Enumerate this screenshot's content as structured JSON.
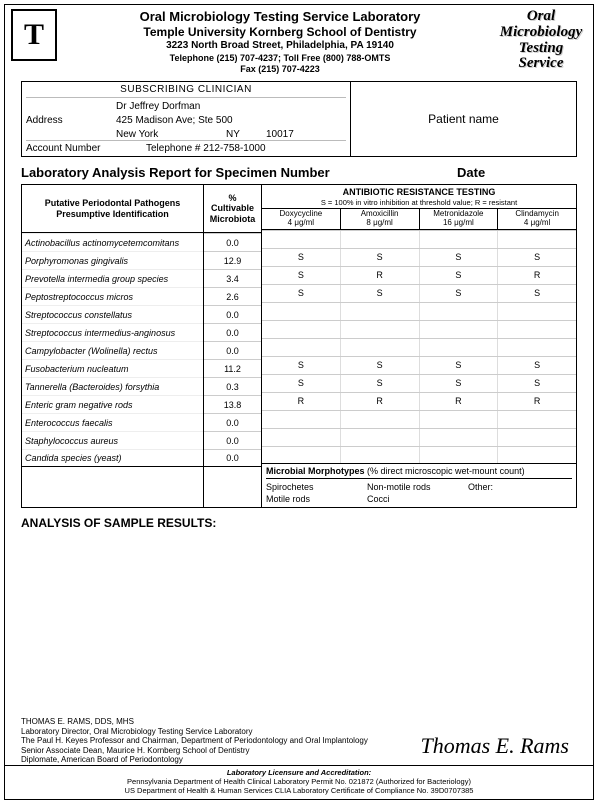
{
  "colors": {
    "text": "#000000",
    "bg": "#ffffff",
    "border": "#000000"
  },
  "header": {
    "lab_name": "Oral Microbiology Testing Service Laboratory",
    "school": "Temple University Kornberg School of Dentistry",
    "address": "3223 North Broad Street, Philadelphia, PA 19140",
    "phone_line": "Telephone (215) 707-4237; Toll Free (800) 788-OMTS",
    "fax_line": "Fax (215) 707-4223",
    "badge_l1": "Oral",
    "badge_l2": "Microbiology",
    "badge_l3": "Testing",
    "badge_l4": "Service"
  },
  "clinician": {
    "header": "SUBSCRIBING CLINICIAN",
    "name": "Dr Jeffrey Dorfman",
    "address_label": "Address",
    "addr1": "425 Madison Ave; Ste 500",
    "city": "New York",
    "state": "NY",
    "zip": "10017",
    "acct_label": "Account Number",
    "tel_label": "Telephone #",
    "tel": "212-758-1000"
  },
  "patient_box": "Patient name",
  "report": {
    "title": "Laboratory Analysis Report for Specimen Number",
    "date_label": "Date"
  },
  "table": {
    "path_header_l1": "Putative Periodontal Pathogens",
    "path_header_l2": "Presumptive Identification",
    "pct_header_l1": "% Cultivable",
    "pct_header_l2": "Microbiota",
    "abx_header": "ANTIBIOTIC RESISTANCE TESTING",
    "abx_sub": "S = 100% in vitro inhibition at threshold value; R = resistant",
    "abx_cols": [
      {
        "name": "Doxycycline",
        "conc": "4 μg/ml"
      },
      {
        "name": "Amoxicillin",
        "conc": "8 μg/ml"
      },
      {
        "name": "Metronidazole",
        "conc": "16 μg/ml"
      },
      {
        "name": "Clindamycin",
        "conc": "4 μg/ml"
      }
    ],
    "rows": [
      {
        "name": "Actinobacillus actinomycetemcomitans",
        "pct": "0.0",
        "abx": [
          "",
          "",
          "",
          ""
        ]
      },
      {
        "name": "Porphyromonas gingivalis",
        "pct": "12.9",
        "abx": [
          "S",
          "S",
          "S",
          "S"
        ]
      },
      {
        "name": "Prevotella intermedia group species",
        "pct": "3.4",
        "abx": [
          "S",
          "R",
          "S",
          "R"
        ]
      },
      {
        "name": "Peptostreptococcus micros",
        "pct": "2.6",
        "abx": [
          "S",
          "S",
          "S",
          "S"
        ]
      },
      {
        "name": "Streptococcus constellatus",
        "pct": "0.0",
        "abx": [
          "",
          "",
          "",
          ""
        ]
      },
      {
        "name": "Streptococcus intermedius-anginosus",
        "pct": "0.0",
        "abx": [
          "",
          "",
          "",
          ""
        ]
      },
      {
        "name": "Campylobacter (Wolinella) rectus",
        "pct": "0.0",
        "abx": [
          "",
          "",
          "",
          ""
        ]
      },
      {
        "name": "Fusobacterium nucleatum",
        "pct": "11.2",
        "abx": [
          "S",
          "S",
          "S",
          "S"
        ]
      },
      {
        "name": "Tannerella (Bacteroides) forsythia",
        "pct": "0.3",
        "abx": [
          "S",
          "S",
          "S",
          "S"
        ]
      },
      {
        "name": "Enteric gram negative rods",
        "pct": "13.8",
        "abx": [
          "R",
          "R",
          "R",
          "R"
        ]
      },
      {
        "name": "Enterococcus faecalis",
        "pct": "0.0",
        "abx": [
          "",
          "",
          "",
          ""
        ]
      },
      {
        "name": "Staphylococcus aureus",
        "pct": "0.0",
        "abx": [
          "",
          "",
          "",
          ""
        ]
      },
      {
        "name": "Candida species (yeast)",
        "pct": "0.0",
        "abx": [
          "",
          "",
          "",
          ""
        ]
      }
    ],
    "morph_title": "Microbial Morphotypes",
    "morph_sub": "(% direct microscopic wet-mount count)",
    "morph_items": [
      "Spirochetes",
      "Non-motile rods",
      "Other:",
      "Motile rods",
      "Cocci"
    ]
  },
  "analysis_header": "ANALYSIS OF SAMPLE RESULTS:",
  "signer": {
    "l1": "THOMAS E. RAMS, DDS, MHS",
    "l2": "Laboratory Director, Oral Microbiology Testing Service Laboratory",
    "l3": "The Paul H. Keyes Professor and Chairman, Department of Periodontology and Oral Implantology",
    "l4": "Senior Associate Dean, Maurice H. Kornberg School of Dentistry",
    "l5": "Diplomate, American Board of Periodontology",
    "signature": "Thomas E. Rams"
  },
  "accred": {
    "title": "Laboratory Licensure and Accreditation:",
    "l1": "Pennsylvania Department of Health Clinical Laboratory Permit No. 021872 (Authorized for Bacteriology)",
    "l2": "US Department of Health & Human Services CLIA Laboratory Certificate of Compliance No. 39D0707385"
  }
}
